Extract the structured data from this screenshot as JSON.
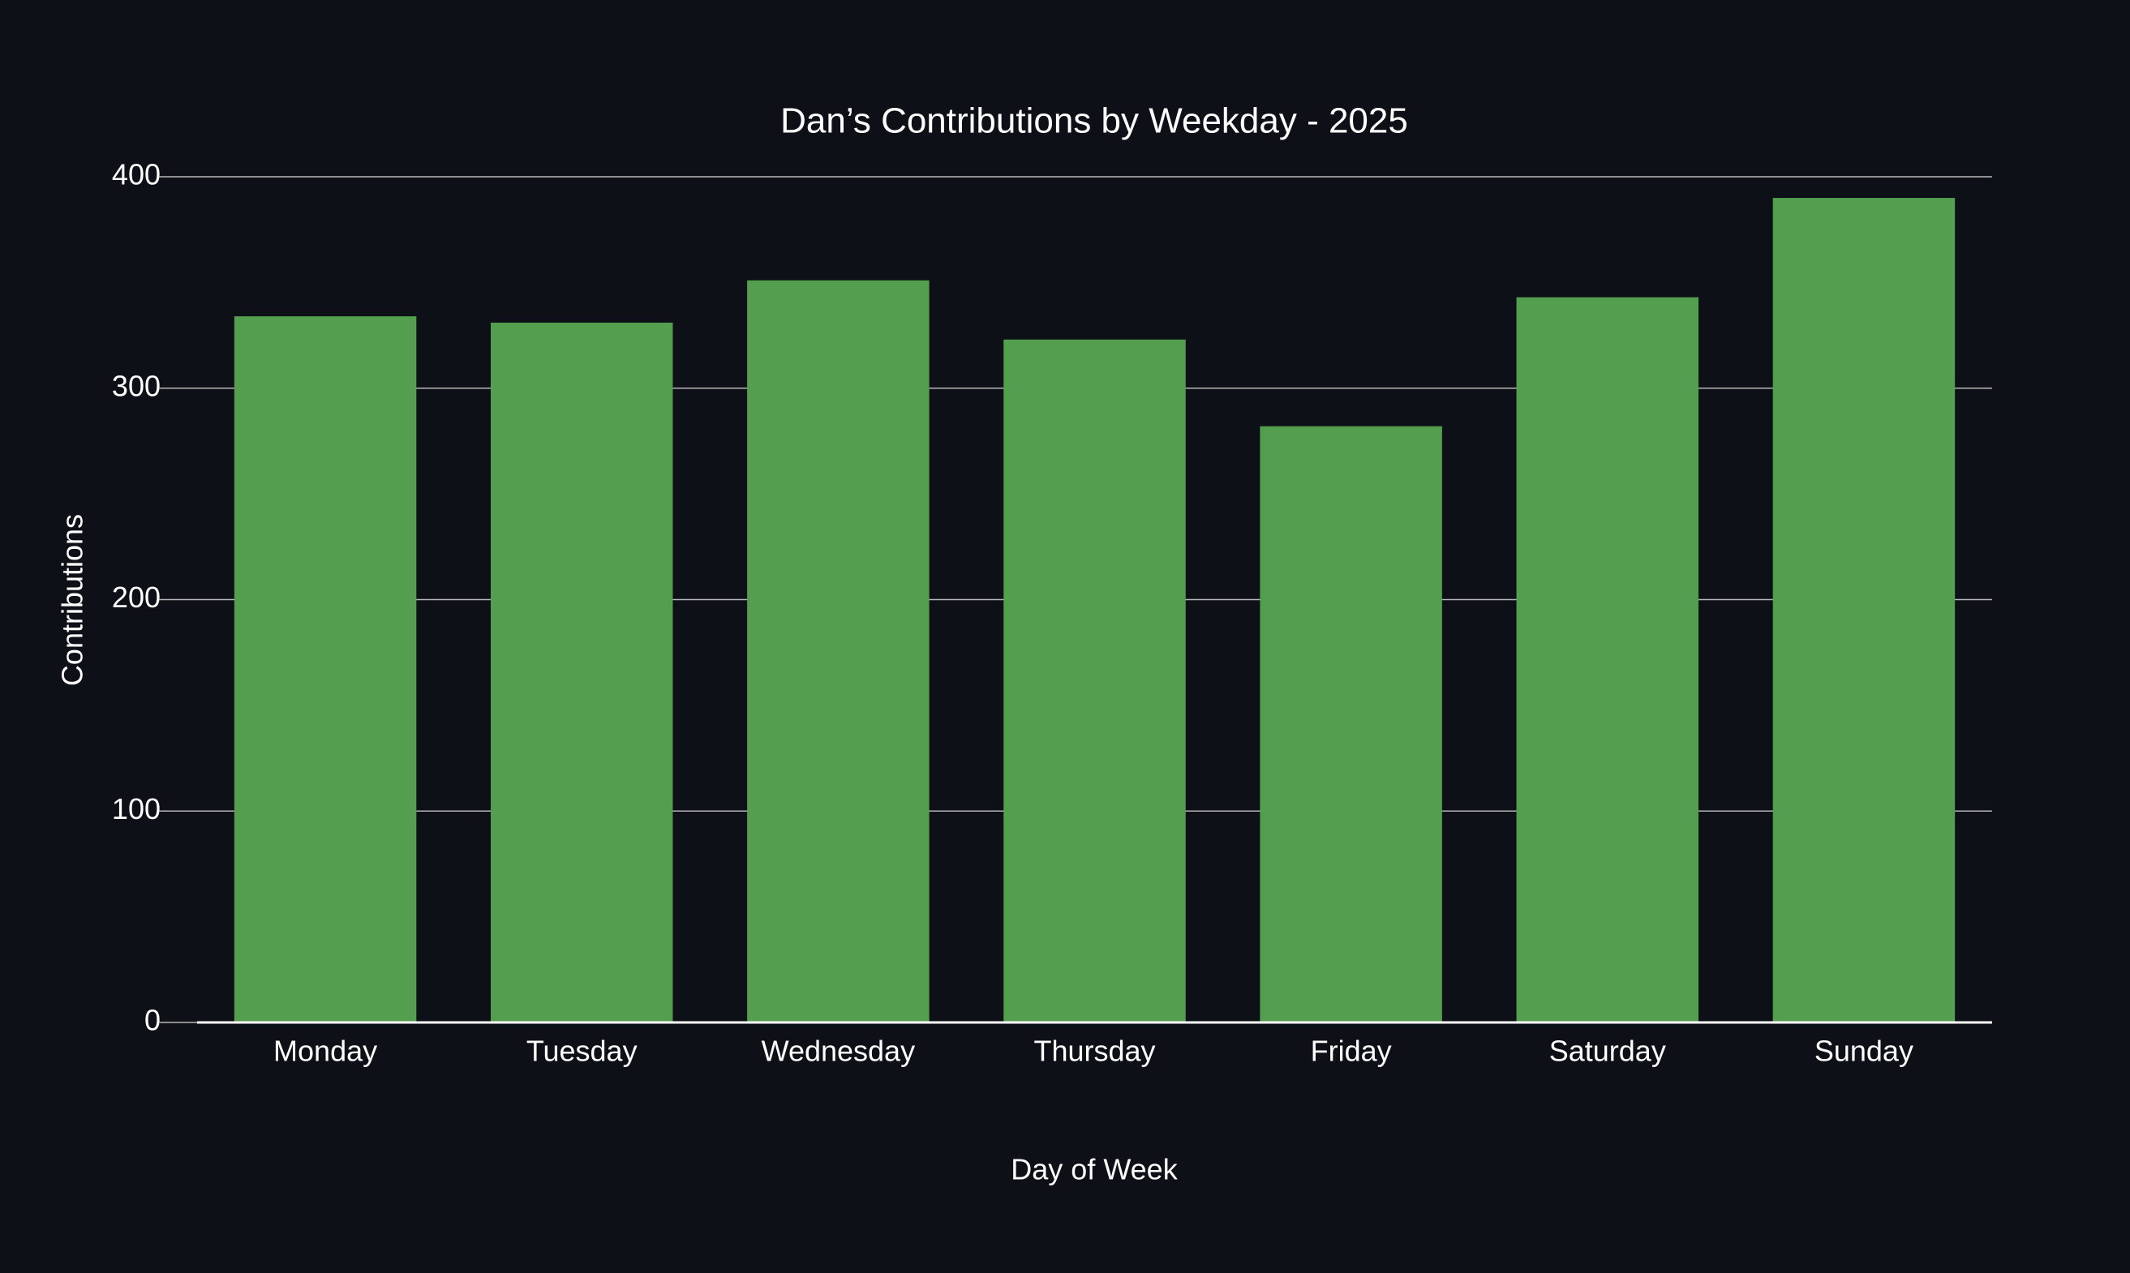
{
  "chart_data": {
    "type": "bar",
    "title": "Dan’s Contributions by Weekday - 2025",
    "x_label": "Day of Week",
    "y_label": "Contributions",
    "categories": [
      "Monday",
      "Tuesday",
      "Wednesday",
      "Thursday",
      "Friday",
      "Saturday",
      "Sunday"
    ],
    "values": [
      334,
      331,
      351,
      323,
      282,
      343,
      390
    ],
    "color": "#539e4f",
    "ylim": [
      0,
      400
    ],
    "yticks": [
      0,
      100,
      200,
      300,
      400
    ],
    "grid": true
  }
}
